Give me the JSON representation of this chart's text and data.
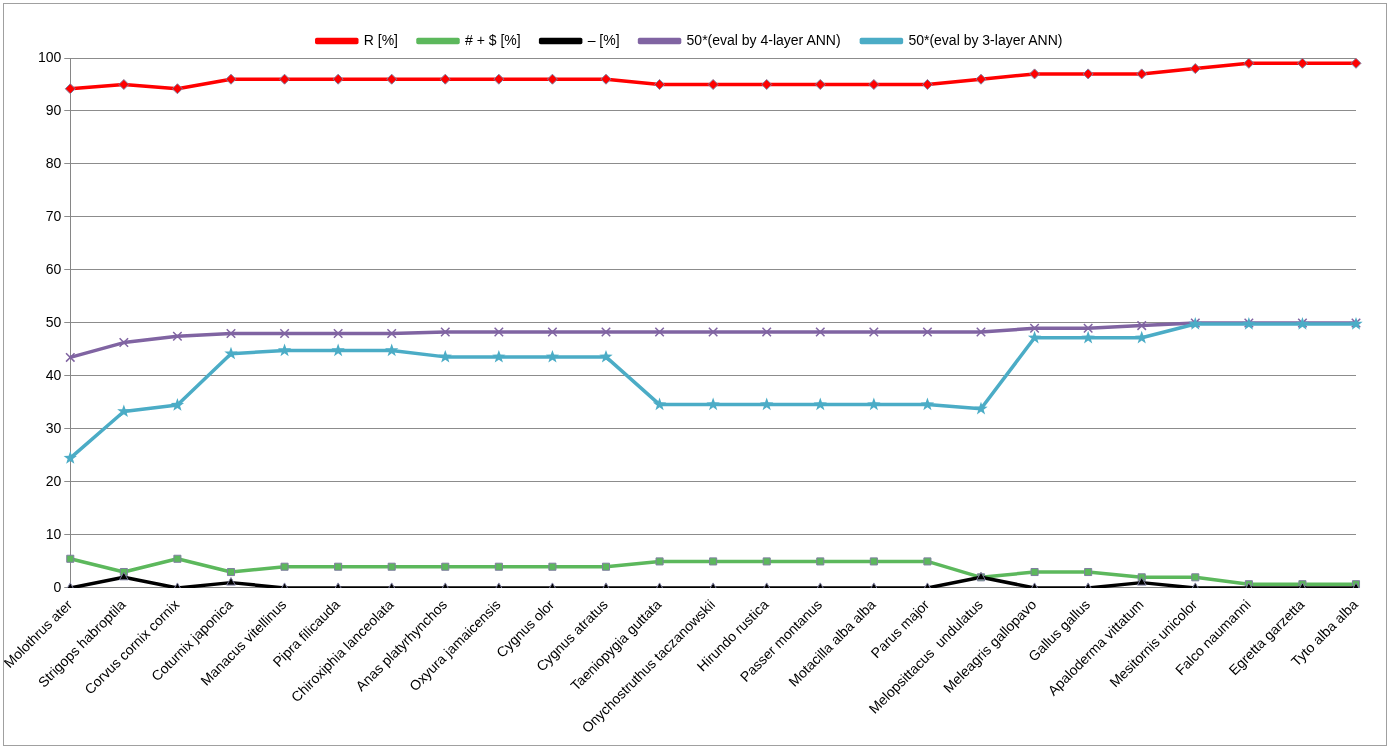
{
  "chart_data": {
    "type": "line",
    "categories": [
      "Molothrus ater",
      "Strigops habroptila",
      "Corvus cornix cornix",
      "Coturnix japonica",
      "Manacus vitellinus",
      "Pipra filicauda",
      "Chiroxiphia lanceolata",
      "Anas platyrhynchos",
      "Oxyura jamaicensis",
      "Cygnus olor",
      "Cygnus atratus",
      "Taeniopygia guttata",
      "Onychostruthus taczanowskii",
      "Hirundo rustica",
      "Passer montanus",
      "Motacilla alba alba",
      "Parus major",
      "Melopsittacus  undulatus",
      "Meleagris gallopavo",
      "Gallus gallus",
      "Apaloderma vittatum",
      "Mesitornis unicolor",
      "Falco naumanni",
      "Egretta garzetta",
      "Tyto alba alba"
    ],
    "series": [
      {
        "name": "R [%]",
        "color": "#ff0000",
        "marker": "diamond",
        "values": [
          94.2,
          95,
          94.2,
          96,
          96,
          96,
          96,
          96,
          96,
          96,
          96,
          95,
          95,
          95,
          95,
          95,
          95,
          96,
          97,
          97,
          97,
          98,
          99,
          99,
          99
        ]
      },
      {
        "name": "# + $ [%]",
        "color": "#5cb85c",
        "marker": "square",
        "values": [
          5.5,
          3,
          5.5,
          3,
          4,
          4,
          4,
          4,
          4,
          4,
          4,
          5,
          5,
          5,
          5,
          5,
          5,
          2,
          3,
          3,
          2,
          2,
          0.7,
          0.7,
          0.7
        ]
      },
      {
        "name": "– [%]",
        "color": "#000000",
        "marker": "triangle",
        "values": [
          0,
          2,
          0,
          1,
          0,
          0,
          0,
          0,
          0,
          0,
          0,
          0,
          0,
          0,
          0,
          0,
          0,
          2,
          0,
          0,
          1,
          0,
          0,
          0,
          0
        ]
      },
      {
        "name": "50*(eval by 4-layer ANN)",
        "color": "#8064a2",
        "marker": "cross",
        "values": [
          43.5,
          46.3,
          47.5,
          48,
          48,
          48,
          48,
          48.3,
          48.3,
          48.3,
          48.3,
          48.3,
          48.3,
          48.3,
          48.3,
          48.3,
          48.3,
          48.3,
          49,
          49,
          49.5,
          50,
          50,
          50,
          50
        ]
      },
      {
        "name": "50*(eval by 3-layer ANN)",
        "color": "#4bacc6",
        "marker": "star",
        "values": [
          24.5,
          33.3,
          34.5,
          44.2,
          44.8,
          44.8,
          44.8,
          43.6,
          43.6,
          43.6,
          43.6,
          34.6,
          34.6,
          34.6,
          34.6,
          34.6,
          34.6,
          33.8,
          47.2,
          47.2,
          47.2,
          49.8,
          49.8,
          49.8,
          49.8
        ]
      }
    ],
    "ylim": [
      0,
      100
    ],
    "yticks": [
      0,
      10,
      20,
      30,
      40,
      50,
      60,
      70,
      80,
      90,
      100
    ],
    "grid": "y",
    "legend": "top"
  }
}
